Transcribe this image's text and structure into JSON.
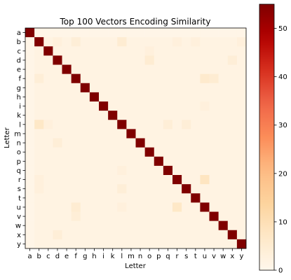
{
  "chart_data": {
    "type": "heatmap",
    "title": "Top 100 Vectors Encoding Similarity",
    "xlabel": "Letter",
    "ylabel": "Letter",
    "x_categories": [
      "a",
      "b",
      "c",
      "d",
      "e",
      "f",
      "g",
      "h",
      "i",
      "k",
      "l",
      "m",
      "n",
      "o",
      "p",
      "q",
      "r",
      "s",
      "t",
      "u",
      "v",
      "w",
      "x",
      "y"
    ],
    "y_categories": [
      "a",
      "b",
      "c",
      "d",
      "e",
      "f",
      "g",
      "h",
      "i",
      "k",
      "l",
      "m",
      "n",
      "o",
      "p",
      "q",
      "r",
      "s",
      "t",
      "u",
      "v",
      "w",
      "x",
      "y"
    ],
    "values": [
      [
        55,
        1,
        1,
        1,
        1,
        1,
        1,
        1,
        1,
        1,
        1,
        1,
        1,
        1,
        1,
        1,
        1,
        1,
        1,
        1,
        1,
        1,
        1,
        1
      ],
      [
        1,
        55,
        2,
        3,
        2,
        4,
        2,
        2,
        2,
        2,
        5,
        2,
        2,
        2,
        2,
        2,
        3,
        2,
        3,
        2,
        2,
        2,
        2,
        3
      ],
      [
        1,
        2,
        55,
        2,
        2,
        2,
        2,
        2,
        2,
        2,
        2,
        2,
        2,
        3,
        2,
        2,
        2,
        2,
        2,
        2,
        2,
        2,
        2,
        2
      ],
      [
        1,
        2,
        2,
        55,
        2,
        2,
        2,
        2,
        2,
        2,
        2,
        2,
        2,
        5,
        2,
        2,
        2,
        2,
        2,
        2,
        2,
        2,
        4,
        2
      ],
      [
        1,
        2,
        2,
        2,
        55,
        2,
        2,
        2,
        2,
        2,
        2,
        2,
        2,
        2,
        2,
        2,
        2,
        2,
        2,
        2,
        2,
        2,
        2,
        2
      ],
      [
        1,
        4,
        2,
        2,
        2,
        55,
        2,
        2,
        2,
        2,
        2,
        2,
        2,
        2,
        2,
        2,
        2,
        2,
        2,
        6,
        5,
        2,
        2,
        2
      ],
      [
        1,
        2,
        2,
        2,
        2,
        2,
        55,
        2,
        2,
        2,
        2,
        2,
        2,
        2,
        2,
        2,
        2,
        2,
        2,
        2,
        2,
        2,
        2,
        2
      ],
      [
        1,
        2,
        2,
        2,
        2,
        2,
        2,
        55,
        2,
        2,
        2,
        2,
        2,
        2,
        2,
        2,
        2,
        2,
        2,
        2,
        2,
        2,
        2,
        2
      ],
      [
        1,
        2,
        2,
        2,
        2,
        2,
        2,
        2,
        55,
        2,
        2,
        2,
        2,
        2,
        2,
        2,
        2,
        2,
        2,
        3,
        2,
        2,
        2,
        2
      ],
      [
        1,
        2,
        2,
        2,
        2,
        2,
        2,
        2,
        2,
        55,
        2,
        2,
        2,
        2,
        2,
        2,
        2,
        2,
        2,
        2,
        2,
        2,
        2,
        2
      ],
      [
        1,
        7,
        3,
        2,
        2,
        2,
        2,
        2,
        2,
        2,
        55,
        2,
        2,
        2,
        2,
        4,
        2,
        4,
        2,
        2,
        2,
        2,
        2,
        2
      ],
      [
        1,
        2,
        2,
        2,
        2,
        2,
        2,
        2,
        2,
        2,
        2,
        55,
        2,
        2,
        2,
        2,
        2,
        2,
        2,
        2,
        2,
        2,
        2,
        2
      ],
      [
        1,
        2,
        2,
        4,
        2,
        2,
        2,
        2,
        2,
        2,
        2,
        2,
        55,
        2,
        2,
        2,
        2,
        2,
        2,
        2,
        2,
        2,
        2,
        2
      ],
      [
        1,
        2,
        2,
        2,
        2,
        2,
        2,
        2,
        2,
        2,
        2,
        2,
        2,
        55,
        2,
        2,
        2,
        2,
        2,
        2,
        2,
        2,
        2,
        2
      ],
      [
        1,
        2,
        2,
        2,
        2,
        2,
        2,
        2,
        2,
        2,
        2,
        2,
        2,
        2,
        55,
        2,
        2,
        2,
        2,
        2,
        2,
        2,
        2,
        2
      ],
      [
        1,
        2,
        2,
        2,
        2,
        2,
        2,
        2,
        2,
        2,
        3,
        2,
        2,
        2,
        2,
        55,
        2,
        2,
        2,
        2,
        2,
        2,
        2,
        2
      ],
      [
        1,
        3,
        2,
        2,
        2,
        2,
        2,
        2,
        2,
        2,
        2,
        2,
        2,
        2,
        2,
        2,
        55,
        2,
        2,
        8,
        2,
        2,
        2,
        2
      ],
      [
        1,
        3,
        2,
        2,
        2,
        2,
        2,
        2,
        2,
        2,
        4,
        2,
        2,
        2,
        2,
        2,
        2,
        55,
        2,
        2,
        2,
        2,
        2,
        2
      ],
      [
        1,
        2,
        2,
        2,
        2,
        2,
        2,
        2,
        2,
        2,
        2,
        2,
        2,
        2,
        2,
        2,
        2,
        2,
        55,
        2,
        2,
        2,
        2,
        2
      ],
      [
        1,
        2,
        2,
        2,
        2,
        5,
        2,
        2,
        2,
        2,
        3,
        2,
        2,
        2,
        2,
        2,
        7,
        2,
        2,
        55,
        2,
        2,
        2,
        2
      ],
      [
        1,
        2,
        2,
        2,
        2,
        4,
        2,
        2,
        2,
        2,
        2,
        2,
        2,
        2,
        2,
        2,
        2,
        2,
        2,
        2,
        55,
        2,
        2,
        2
      ],
      [
        1,
        2,
        2,
        2,
        2,
        2,
        2,
        2,
        2,
        2,
        2,
        2,
        2,
        2,
        2,
        2,
        2,
        2,
        2,
        2,
        2,
        55,
        2,
        2
      ],
      [
        1,
        2,
        2,
        4,
        2,
        2,
        2,
        2,
        2,
        2,
        2,
        2,
        2,
        2,
        2,
        2,
        2,
        2,
        2,
        2,
        2,
        2,
        55,
        2
      ],
      [
        1,
        2,
        2,
        2,
        2,
        2,
        2,
        2,
        2,
        2,
        2,
        2,
        2,
        2,
        2,
        2,
        2,
        2,
        2,
        2,
        2,
        2,
        2,
        55
      ]
    ],
    "colormap": "OrRd",
    "vmin": 0,
    "vmax": 55,
    "colorbar_ticks": [
      0,
      10,
      20,
      30,
      40,
      50
    ]
  }
}
